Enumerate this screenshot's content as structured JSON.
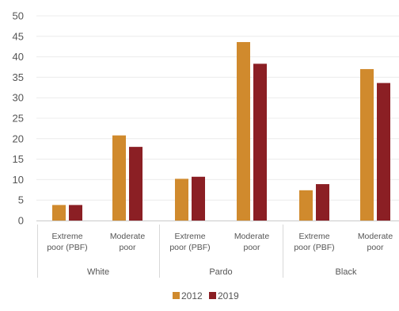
{
  "chart_data": {
    "type": "bar",
    "title": "",
    "xlabel": "",
    "ylabel": "",
    "ylim": [
      0,
      50
    ],
    "yticks": [
      0,
      5,
      10,
      15,
      20,
      25,
      30,
      35,
      40,
      45,
      50
    ],
    "grid": true,
    "legend_position": "bottom-center",
    "categories": [
      {
        "label_lines": [
          "Extreme",
          "poor (PBF)"
        ],
        "group": "White"
      },
      {
        "label_lines": [
          "Moderate",
          "poor"
        ],
        "group": "White"
      },
      {
        "label_lines": [
          "Extreme",
          "poor (PBF)"
        ],
        "group": "Pardo"
      },
      {
        "label_lines": [
          "Moderate",
          "poor"
        ],
        "group": "Pardo"
      },
      {
        "label_lines": [
          "Extreme",
          "poor (PBF)"
        ],
        "group": "Black"
      },
      {
        "label_lines": [
          "Moderate",
          "poor"
        ],
        "group": "Black"
      }
    ],
    "groups": [
      "White",
      "Pardo",
      "Black"
    ],
    "series": [
      {
        "name": "2012",
        "color": "#d08a2d",
        "values": [
          3.8,
          20.8,
          10.2,
          43.6,
          7.4,
          37.0
        ]
      },
      {
        "name": "2019",
        "color": "#8b1f24",
        "values": [
          3.8,
          18.0,
          10.7,
          38.3,
          8.9,
          33.6
        ]
      }
    ]
  }
}
